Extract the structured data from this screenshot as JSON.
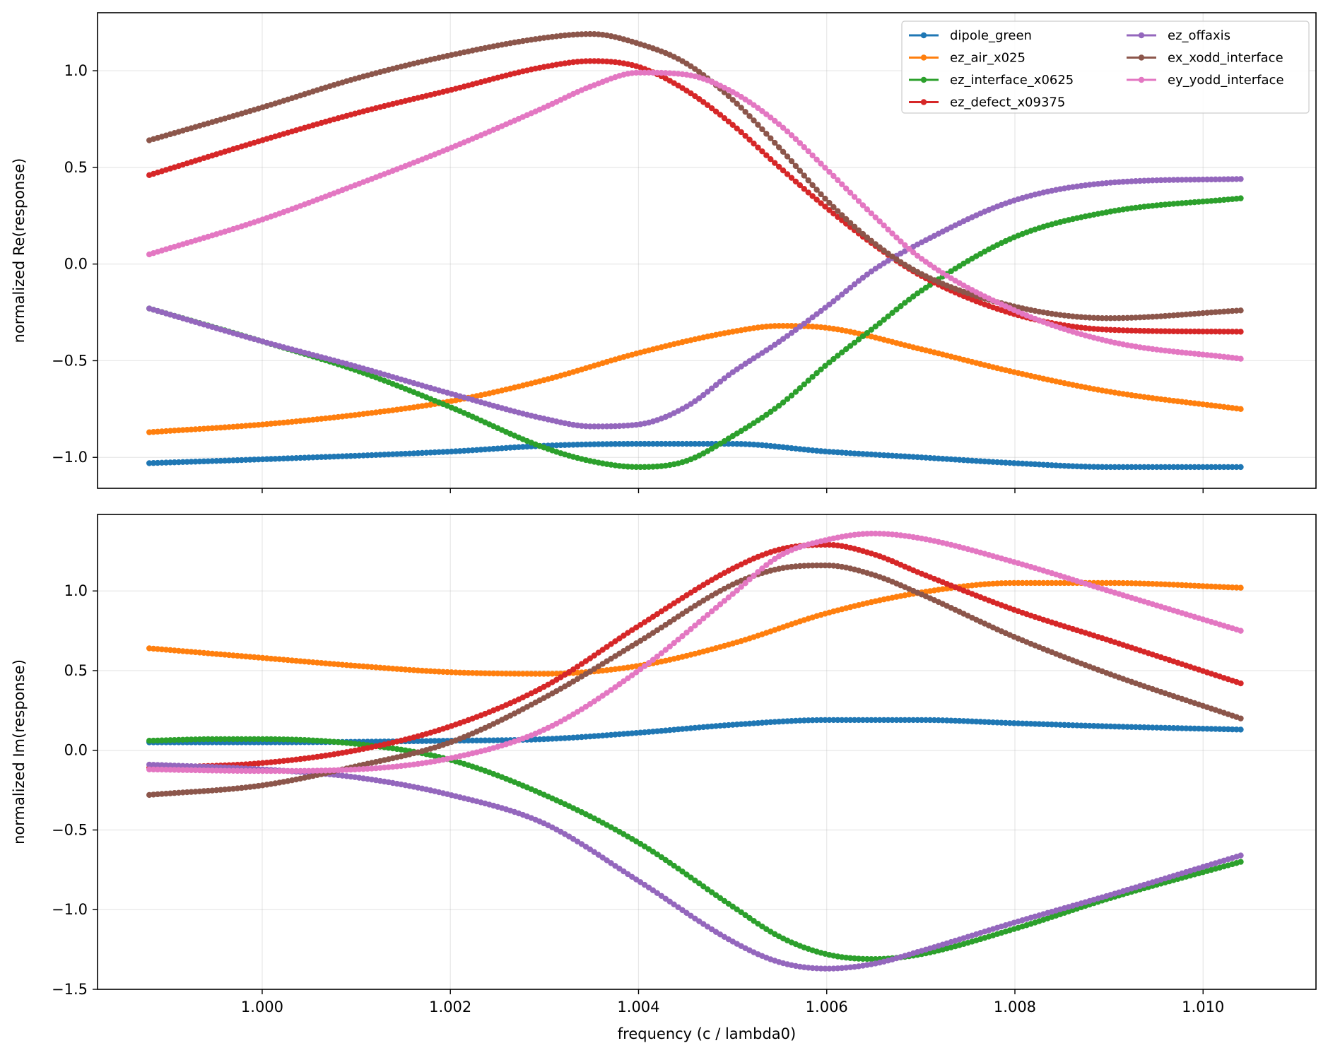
{
  "chart_data": [
    {
      "type": "line",
      "panel": "top",
      "ylabel": "normalized Re(response)",
      "xlabel": "",
      "xlim": [
        0.99825,
        1.0112
      ],
      "ylim": [
        -1.16,
        1.3
      ],
      "xticks": [
        1.0,
        1.002,
        1.004,
        1.006,
        1.008,
        1.01
      ],
      "xtick_labels": [],
      "yticks": [
        -1.0,
        -0.5,
        0.0,
        0.5,
        1.0
      ],
      "ytick_labels": [
        "−1.0",
        "−0.5",
        "0.0",
        "0.5",
        "1.0"
      ],
      "grid": true,
      "legend": "upper right, 2 columns",
      "series": [
        {
          "name": "dipole_green",
          "color": "#1f77b4",
          "x": [
            0.9988,
            1.0,
            1.002,
            1.003,
            1.004,
            1.005,
            1.006,
            1.007,
            1.008,
            1.009,
            1.0104
          ],
          "y": [
            -1.03,
            -1.01,
            -0.97,
            -0.94,
            -0.93,
            -0.93,
            -0.97,
            -1.0,
            -1.03,
            -1.05,
            -1.05
          ]
        },
        {
          "name": "ez_air_x025",
          "color": "#ff7f0e",
          "x": [
            0.9988,
            1.0,
            1.001,
            1.002,
            1.003,
            1.004,
            1.005,
            1.0055,
            1.006,
            1.007,
            1.008,
            1.009,
            1.0104
          ],
          "y": [
            -0.87,
            -0.83,
            -0.78,
            -0.71,
            -0.6,
            -0.46,
            -0.35,
            -0.32,
            -0.33,
            -0.44,
            -0.56,
            -0.66,
            -0.75
          ]
        },
        {
          "name": "ez_interface_x0625",
          "color": "#2ca02c",
          "x": [
            0.9988,
            1.0,
            1.001,
            1.002,
            1.003,
            1.0035,
            1.004,
            1.0045,
            1.005,
            1.0055,
            1.006,
            1.0065,
            1.007,
            1.008,
            1.009,
            1.0104
          ],
          "y": [
            -0.23,
            -0.4,
            -0.55,
            -0.74,
            -0.95,
            -1.02,
            -1.05,
            -1.02,
            -0.89,
            -0.73,
            -0.52,
            -0.33,
            -0.14,
            0.14,
            0.27,
            0.34
          ]
        },
        {
          "name": "ez_defect_x09375",
          "color": "#d62728",
          "x": [
            0.9988,
            1.0,
            1.001,
            1.002,
            1.003,
            1.0035,
            1.004,
            1.0045,
            1.005,
            1.0055,
            1.006,
            1.0065,
            1.007,
            1.008,
            1.009,
            1.0104
          ],
          "y": [
            0.46,
            0.64,
            0.78,
            0.9,
            1.02,
            1.05,
            1.02,
            0.9,
            0.72,
            0.5,
            0.29,
            0.1,
            -0.06,
            -0.26,
            -0.34,
            -0.35
          ]
        },
        {
          "name": "ez_offaxis",
          "color": "#9467bd",
          "x": [
            0.9988,
            1.0,
            1.001,
            1.002,
            1.003,
            1.0035,
            1.004,
            1.0045,
            1.005,
            1.0055,
            1.006,
            1.0065,
            1.007,
            1.008,
            1.009,
            1.0104
          ],
          "y": [
            -0.23,
            -0.4,
            -0.53,
            -0.67,
            -0.8,
            -0.84,
            -0.83,
            -0.74,
            -0.56,
            -0.4,
            -0.22,
            -0.03,
            0.11,
            0.33,
            0.42,
            0.44
          ]
        },
        {
          "name": "ex_xodd_interface",
          "color": "#8c564b",
          "x": [
            0.9988,
            1.0,
            1.001,
            1.002,
            1.003,
            1.0035,
            1.004,
            1.0045,
            1.005,
            1.0055,
            1.006,
            1.0065,
            1.007,
            1.008,
            1.009,
            1.0104
          ],
          "y": [
            0.64,
            0.81,
            0.96,
            1.08,
            1.17,
            1.19,
            1.14,
            1.04,
            0.85,
            0.6,
            0.33,
            0.11,
            -0.05,
            -0.22,
            -0.28,
            -0.24
          ]
        },
        {
          "name": "ey_yodd_interface",
          "color": "#e377c2",
          "x": [
            0.9988,
            1.0,
            1.001,
            1.002,
            1.003,
            1.0035,
            1.004,
            1.0045,
            1.005,
            1.0055,
            1.006,
            1.0065,
            1.007,
            1.008,
            1.009,
            1.0104
          ],
          "y": [
            0.05,
            0.23,
            0.41,
            0.6,
            0.81,
            0.92,
            0.99,
            0.98,
            0.89,
            0.72,
            0.49,
            0.25,
            0.03,
            -0.24,
            -0.4,
            -0.49
          ]
        }
      ]
    },
    {
      "type": "line",
      "panel": "bottom",
      "ylabel": "normalized Im(response)",
      "xlabel": "frequency (c / lambda0)",
      "xlim": [
        0.99825,
        1.0112
      ],
      "ylim": [
        -1.5,
        1.48
      ],
      "xticks": [
        1.0,
        1.002,
        1.004,
        1.006,
        1.008,
        1.01
      ],
      "xtick_labels": [
        "1.000",
        "1.002",
        "1.004",
        "1.006",
        "1.008",
        "1.010"
      ],
      "yticks": [
        -1.5,
        -1.0,
        -0.5,
        0.0,
        0.5,
        1.0
      ],
      "ytick_labels": [
        "−1.5",
        "−1.0",
        "−0.5",
        "0.0",
        "0.5",
        "1.0"
      ],
      "grid": true,
      "series": [
        {
          "name": "dipole_green",
          "color": "#1f77b4",
          "x": [
            0.9988,
            1.0,
            1.002,
            1.003,
            1.004,
            1.005,
            1.006,
            1.007,
            1.008,
            1.009,
            1.0104
          ],
          "y": [
            0.05,
            0.05,
            0.06,
            0.07,
            0.11,
            0.16,
            0.19,
            0.19,
            0.17,
            0.15,
            0.13
          ]
        },
        {
          "name": "ez_air_x025",
          "color": "#ff7f0e",
          "x": [
            0.9988,
            1.0,
            1.001,
            1.002,
            1.003,
            1.004,
            1.005,
            1.006,
            1.007,
            1.008,
            1.009,
            1.0104
          ],
          "y": [
            0.64,
            0.58,
            0.53,
            0.49,
            0.48,
            0.53,
            0.67,
            0.86,
            0.99,
            1.05,
            1.05,
            1.02
          ]
        },
        {
          "name": "ez_interface_x0625",
          "color": "#2ca02c",
          "x": [
            0.9988,
            0.9995,
            1.0,
            1.001,
            1.002,
            1.003,
            1.004,
            1.005,
            1.0055,
            1.006,
            1.0065,
            1.007,
            1.008,
            1.009,
            1.0104
          ],
          "y": [
            0.06,
            0.07,
            0.07,
            0.04,
            -0.06,
            -0.28,
            -0.58,
            -0.98,
            -1.17,
            -1.28,
            -1.31,
            -1.28,
            -1.12,
            -0.93,
            -0.7
          ]
        },
        {
          "name": "ez_defect_x09375",
          "color": "#d62728",
          "x": [
            0.9988,
            1.0,
            1.001,
            1.002,
            1.003,
            1.004,
            1.005,
            1.0055,
            1.006,
            1.0065,
            1.007,
            1.008,
            1.009,
            1.0104
          ],
          "y": [
            -0.11,
            -0.08,
            0.0,
            0.15,
            0.4,
            0.78,
            1.14,
            1.26,
            1.29,
            1.23,
            1.11,
            0.88,
            0.69,
            0.42
          ]
        },
        {
          "name": "ez_offaxis",
          "color": "#9467bd",
          "x": [
            0.9988,
            1.0,
            1.001,
            1.002,
            1.003,
            1.004,
            1.005,
            1.0055,
            1.006,
            1.0065,
            1.007,
            1.008,
            1.009,
            1.0104
          ],
          "y": [
            -0.09,
            -0.12,
            -0.17,
            -0.28,
            -0.46,
            -0.82,
            -1.2,
            -1.33,
            -1.37,
            -1.34,
            -1.26,
            -1.08,
            -0.91,
            -0.66
          ]
        },
        {
          "name": "ex_xodd_interface",
          "color": "#8c564b",
          "x": [
            0.9988,
            1.0,
            1.001,
            1.002,
            1.003,
            1.004,
            1.005,
            1.0055,
            1.006,
            1.0065,
            1.007,
            1.008,
            1.009,
            1.0104
          ],
          "y": [
            -0.28,
            -0.22,
            -0.1,
            0.05,
            0.33,
            0.68,
            1.04,
            1.14,
            1.16,
            1.1,
            0.98,
            0.71,
            0.48,
            0.2
          ]
        },
        {
          "name": "ey_yodd_interface",
          "color": "#e377c2",
          "x": [
            0.9988,
            1.0,
            1.001,
            1.002,
            1.003,
            1.004,
            1.005,
            1.0055,
            1.006,
            1.0065,
            1.007,
            1.008,
            1.009,
            1.0104
          ],
          "y": [
            -0.12,
            -0.13,
            -0.12,
            -0.05,
            0.13,
            0.5,
            0.98,
            1.22,
            1.32,
            1.36,
            1.33,
            1.18,
            1.0,
            0.75
          ]
        }
      ]
    }
  ]
}
